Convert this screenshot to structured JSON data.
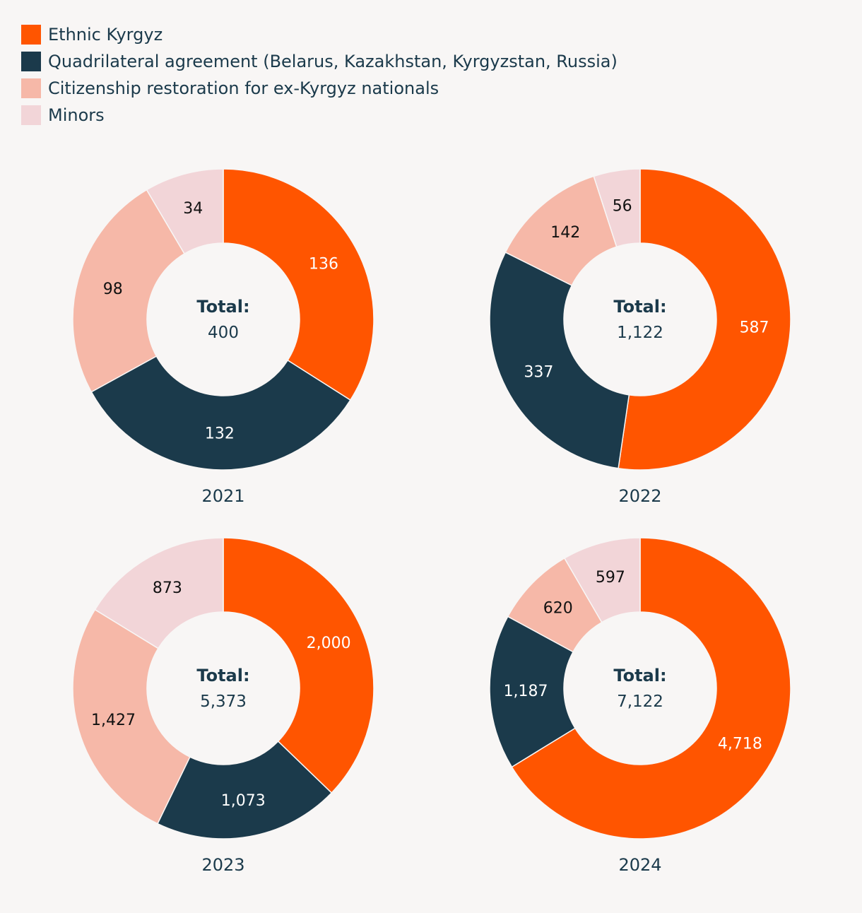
{
  "legend": [
    {
      "label": "Ethnic Kyrgyz",
      "color": "#ff5500"
    },
    {
      "label": "Quadrilateral agreement (Belarus, Kazakhstan, Kyrgyzstan, Russia)",
      "color": "#1b3a4b"
    },
    {
      "label": "Citizenship restoration for ex-Kyrgyz nationals",
      "color": "#f6b8a8"
    },
    {
      "label": "Minors",
      "color": "#f2d5d8"
    }
  ],
  "chart_data": [
    {
      "type": "pie",
      "title": "2021",
      "total_label": "Total:",
      "total_value": "400",
      "categories": [
        "Ethnic Kyrgyz",
        "Quadrilateral agreement (Belarus, Kazakhstan, Kyrgyzstan, Russia)",
        "Citizenship restoration for ex-Kyrgyz nationals",
        "Minors"
      ],
      "values": [
        136,
        132,
        98,
        34
      ],
      "value_labels": [
        "136",
        "132",
        "98",
        "34"
      ]
    },
    {
      "type": "pie",
      "title": "2022",
      "total_label": "Total:",
      "total_value": "1,122",
      "categories": [
        "Ethnic Kyrgyz",
        "Quadrilateral agreement (Belarus, Kazakhstan, Kyrgyzstan, Russia)",
        "Citizenship restoration for ex-Kyrgyz nationals",
        "Minors"
      ],
      "values": [
        587,
        337,
        142,
        56
      ],
      "value_labels": [
        "587",
        "337",
        "142",
        "56"
      ]
    },
    {
      "type": "pie",
      "title": "2023",
      "total_label": "Total:",
      "total_value": "5,373",
      "categories": [
        "Ethnic Kyrgyz",
        "Quadrilateral agreement (Belarus, Kazakhstan, Kyrgyzstan, Russia)",
        "Citizenship restoration for ex-Kyrgyz nationals",
        "Minors"
      ],
      "values": [
        2000,
        1073,
        1427,
        873
      ],
      "value_labels": [
        "2,000",
        "1,073",
        "1,427",
        "873"
      ]
    },
    {
      "type": "pie",
      "title": "2024",
      "total_label": "Total:",
      "total_value": "7,122",
      "categories": [
        "Ethnic Kyrgyz",
        "Quadrilateral agreement (Belarus, Kazakhstan, Kyrgyzstan, Russia)",
        "Citizenship restoration for ex-Kyrgyz nationals",
        "Minors"
      ],
      "values": [
        4718,
        1187,
        620,
        597
      ],
      "value_labels": [
        "4,718",
        "1,187",
        "620",
        "597"
      ]
    }
  ],
  "label_colors": [
    "#ffffff",
    "#ffffff",
    "#111111",
    "#111111"
  ]
}
